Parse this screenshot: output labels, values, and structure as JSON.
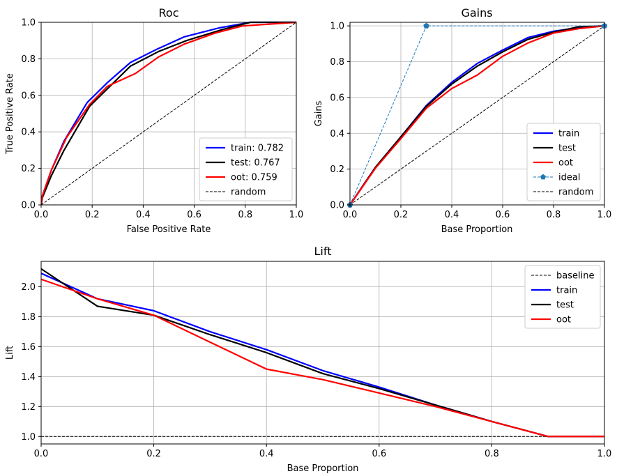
{
  "colors": {
    "train": "#0000ff",
    "test": "#000000",
    "oot": "#ff0000",
    "ideal": "#1f77b4",
    "ref": "#000000"
  },
  "chart_data": [
    {
      "id": "roc",
      "type": "line",
      "title": "Roc",
      "xlabel": "False Positive Rate",
      "ylabel": "True Positive Rate",
      "xlim": [
        0,
        1
      ],
      "ylim": [
        0,
        1
      ],
      "xticks": [
        "0.0",
        "0.2",
        "0.4",
        "0.6",
        "0.8",
        "1.0"
      ],
      "yticks": [
        "0.0",
        "0.2",
        "0.4",
        "0.6",
        "0.8",
        "1.0"
      ],
      "grid": true,
      "legend_position": "lower-right",
      "series": [
        {
          "key": "train",
          "name": "train: 0.782",
          "style": "solid",
          "x": [
            0,
            0.005,
            0.04,
            0.09,
            0.18,
            0.26,
            0.35,
            0.45,
            0.56,
            0.7,
            0.82,
            1.0
          ],
          "y": [
            0,
            0.05,
            0.19,
            0.35,
            0.56,
            0.67,
            0.78,
            0.85,
            0.92,
            0.97,
            1.0,
            1.0
          ]
        },
        {
          "key": "test",
          "name": "test: 0.767",
          "style": "solid",
          "x": [
            0,
            0.005,
            0.04,
            0.09,
            0.19,
            0.27,
            0.35,
            0.46,
            0.57,
            0.71,
            0.82,
            1.0
          ],
          "y": [
            0,
            0.04,
            0.16,
            0.3,
            0.54,
            0.65,
            0.76,
            0.84,
            0.9,
            0.96,
            1.0,
            1.0
          ]
        },
        {
          "key": "oot",
          "name": "oot: 0.759",
          "style": "solid",
          "x": [
            0,
            0.005,
            0.04,
            0.1,
            0.19,
            0.26,
            0.37,
            0.46,
            0.56,
            0.68,
            0.79,
            1.0
          ],
          "y": [
            0,
            0.05,
            0.19,
            0.37,
            0.55,
            0.65,
            0.72,
            0.81,
            0.88,
            0.94,
            0.98,
            1.0
          ]
        },
        {
          "key": "ref",
          "name": "random",
          "style": "dashed",
          "x": [
            0,
            1
          ],
          "y": [
            0,
            1
          ]
        }
      ]
    },
    {
      "id": "gains",
      "type": "line",
      "title": "Gains",
      "xlabel": "Base Proportion",
      "ylabel": "Gains",
      "xlim": [
        0,
        1
      ],
      "ylim": [
        0,
        1.02
      ],
      "xticks": [
        "0.0",
        "0.2",
        "0.4",
        "0.6",
        "0.8",
        "1.0"
      ],
      "yticks": [
        "0.0",
        "0.2",
        "0.4",
        "0.6",
        "0.8",
        "1.0"
      ],
      "grid": true,
      "legend_position": "lower-right",
      "series": [
        {
          "key": "train",
          "name": "train",
          "style": "solid",
          "x": [
            0,
            0.1,
            0.2,
            0.3,
            0.4,
            0.5,
            0.6,
            0.7,
            0.8,
            0.9,
            1.0
          ],
          "y": [
            0,
            0.21,
            0.38,
            0.555,
            0.685,
            0.79,
            0.865,
            0.935,
            0.97,
            0.99,
            1.0
          ]
        },
        {
          "key": "test",
          "name": "test",
          "style": "solid",
          "x": [
            0,
            0.1,
            0.2,
            0.3,
            0.4,
            0.5,
            0.6,
            0.7,
            0.8,
            0.9,
            1.0
          ],
          "y": [
            0,
            0.21,
            0.38,
            0.55,
            0.675,
            0.775,
            0.855,
            0.925,
            0.965,
            0.995,
            1.0
          ]
        },
        {
          "key": "oot",
          "name": "oot",
          "style": "solid",
          "x": [
            0,
            0.1,
            0.2,
            0.3,
            0.4,
            0.5,
            0.6,
            0.7,
            0.8,
            0.9,
            1.0
          ],
          "y": [
            0,
            0.205,
            0.37,
            0.54,
            0.65,
            0.725,
            0.83,
            0.905,
            0.96,
            0.985,
            1.0
          ]
        },
        {
          "key": "ideal",
          "name": "ideal",
          "style": "dashed-marker",
          "x": [
            0,
            0.3,
            1.0
          ],
          "y": [
            0,
            1.0,
            1.0
          ]
        },
        {
          "key": "ref",
          "name": "random",
          "style": "dashed",
          "x": [
            0,
            1
          ],
          "y": [
            0,
            1
          ]
        }
      ]
    },
    {
      "id": "lift",
      "type": "line",
      "title": "Lift",
      "xlabel": "Base Proportion",
      "ylabel": "Lift",
      "xlim": [
        0,
        1
      ],
      "ylim": [
        0.95,
        2.17
      ],
      "xticks": [
        "0.0",
        "0.2",
        "0.4",
        "0.6",
        "0.8",
        "1.0"
      ],
      "yticks": [
        "1.0",
        "1.2",
        "1.4",
        "1.6",
        "1.8",
        "2.0"
      ],
      "grid": true,
      "legend_position": "upper-right",
      "series": [
        {
          "key": "ref",
          "name": "baseline",
          "style": "dashed",
          "x": [
            0,
            1
          ],
          "y": [
            1,
            1
          ]
        },
        {
          "key": "train",
          "name": "train",
          "style": "solid",
          "x": [
            0,
            0.1,
            0.2,
            0.3,
            0.4,
            0.5,
            0.6,
            0.7,
            0.8,
            0.9,
            1.0
          ],
          "y": [
            2.09,
            1.92,
            1.84,
            1.7,
            1.58,
            1.44,
            1.33,
            1.21,
            1.1,
            1.0,
            1.0
          ]
        },
        {
          "key": "test",
          "name": "test",
          "style": "solid",
          "x": [
            0,
            0.1,
            0.2,
            0.3,
            0.4,
            0.5,
            0.6,
            0.7,
            0.8,
            0.9,
            1.0
          ],
          "y": [
            2.12,
            1.87,
            1.81,
            1.68,
            1.56,
            1.42,
            1.32,
            1.21,
            1.1,
            1.0,
            1.0
          ]
        },
        {
          "key": "oot",
          "name": "oot",
          "style": "solid",
          "x": [
            0,
            0.1,
            0.2,
            0.3,
            0.4,
            0.5,
            0.6,
            0.7,
            0.8,
            0.9,
            1.0
          ],
          "y": [
            2.05,
            1.92,
            1.81,
            1.63,
            1.45,
            1.38,
            1.29,
            1.2,
            1.1,
            1.0,
            1.0
          ]
        }
      ]
    }
  ]
}
